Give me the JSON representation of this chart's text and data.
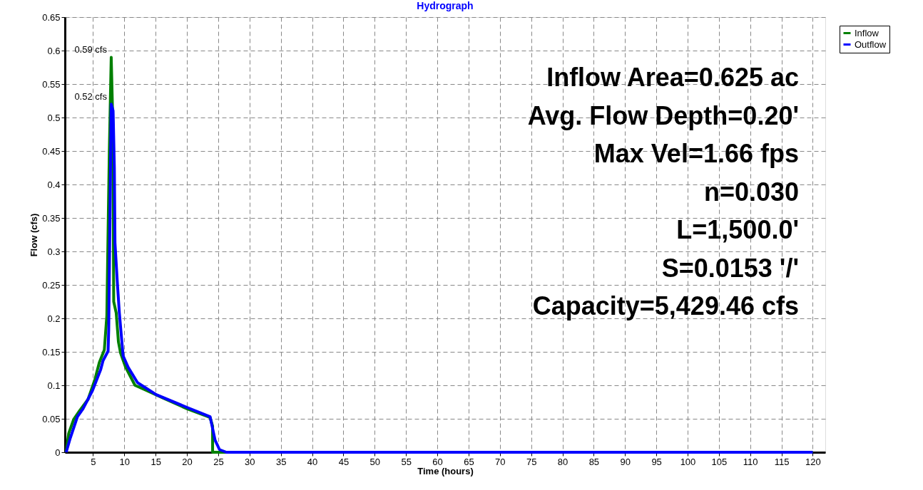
{
  "chart_data": {
    "type": "line",
    "title": "Hydrograph",
    "xlabel": "Time  (hours)",
    "ylabel": "Flow  (cfs)",
    "xlim": [
      0.5,
      122
    ],
    "xticks": [
      5,
      10,
      15,
      20,
      25,
      30,
      35,
      40,
      45,
      50,
      55,
      60,
      65,
      70,
      75,
      80,
      85,
      90,
      95,
      100,
      105,
      110,
      115,
      120
    ],
    "ylim": [
      0,
      0.65
    ],
    "yticks": [
      0,
      0.05,
      0.1,
      0.15,
      0.2,
      0.25,
      0.3,
      0.35,
      0.4,
      0.45,
      0.5,
      0.55,
      0.6,
      0.65
    ],
    "grid": true,
    "legend": "top right",
    "line_style": "solid",
    "marker": "none",
    "series": [
      {
        "name": "Inflow",
        "color": "#008000",
        "x": [
          0.7,
          1.1,
          1.9,
          2.85,
          4.2,
          5.3,
          6.0,
          6.8,
          7.2,
          7.4,
          7.6,
          7.9,
          8.15,
          8.3,
          8.7,
          9.05,
          9.4,
          10.2,
          11.7,
          13.6,
          16.2,
          20,
          23.7,
          24.1,
          24.1,
          120
        ],
        "values": [
          0,
          0.028,
          0.049,
          0.062,
          0.079,
          0.109,
          0.134,
          0.153,
          0.204,
          0.33,
          0.45,
          0.59,
          0.494,
          0.225,
          0.208,
          0.165,
          0.148,
          0.127,
          0.1,
          0.092,
          0.081,
          0.065,
          0.052,
          0.039,
          0,
          0
        ]
      },
      {
        "name": "Outflow",
        "color": "#0000ff",
        "x": [
          0.7,
          1.35,
          2.5,
          3.4,
          4.9,
          6.2,
          6.6,
          7.4,
          7.5,
          7.9,
          8.2,
          8.4,
          8.5,
          8.9,
          9.2,
          9.8,
          10.6,
          12.1,
          15.1,
          20,
          23.7,
          24.5,
          25.2,
          26.3,
          120
        ],
        "values": [
          0,
          0.021,
          0.053,
          0.065,
          0.092,
          0.123,
          0.137,
          0.151,
          0.183,
          0.52,
          0.51,
          0.425,
          0.313,
          0.25,
          0.208,
          0.144,
          0.127,
          0.104,
          0.086,
          0.067,
          0.053,
          0.018,
          0.004,
          0,
          0
        ]
      }
    ],
    "annotations": [
      {
        "text": "0.59 cfs",
        "x": 7.9,
        "y": 0.59
      },
      {
        "text": "0.52 cfs",
        "x": 7.9,
        "y": 0.52
      },
      "Inflow Area=0.625 ac",
      "Avg. Flow Depth=0.20'",
      "Max Vel=1.66 fps",
      "n=0.030",
      "L=1,500.0'",
      "S=0.0153 '/'",
      "Capacity=5,429.46 cfs"
    ]
  }
}
